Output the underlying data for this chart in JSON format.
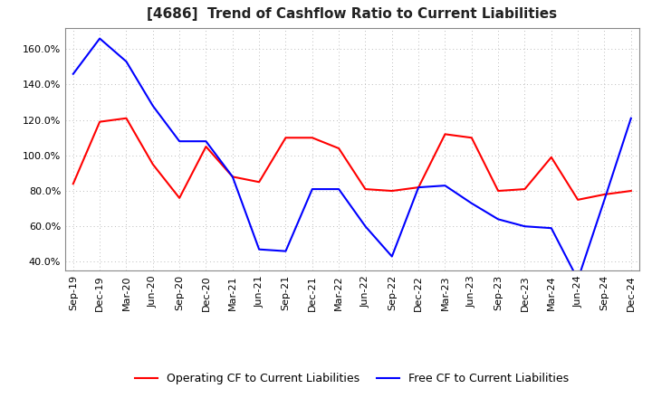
{
  "title": "[4686]  Trend of Cashflow Ratio to Current Liabilities",
  "x_labels": [
    "Sep-19",
    "Dec-19",
    "Mar-20",
    "Jun-20",
    "Sep-20",
    "Dec-20",
    "Mar-21",
    "Jun-21",
    "Sep-21",
    "Dec-21",
    "Mar-22",
    "Jun-22",
    "Sep-22",
    "Dec-22",
    "Mar-23",
    "Jun-23",
    "Sep-23",
    "Dec-23",
    "Mar-24",
    "Jun-24",
    "Sep-24",
    "Dec-24"
  ],
  "operating_cf": [
    0.84,
    1.19,
    1.21,
    0.95,
    0.76,
    1.05,
    0.88,
    0.85,
    1.1,
    1.1,
    1.04,
    0.81,
    0.8,
    0.82,
    1.12,
    1.1,
    0.8,
    0.81,
    0.99,
    0.75,
    0.78,
    0.8
  ],
  "free_cf": [
    1.46,
    1.66,
    1.53,
    1.28,
    1.08,
    1.08,
    0.88,
    0.47,
    0.46,
    0.81,
    0.81,
    0.6,
    0.43,
    0.82,
    0.83,
    0.73,
    0.64,
    0.6,
    0.59,
    0.3,
    0.75,
    1.21
  ],
  "operating_color": "#ff0000",
  "free_color": "#0000ff",
  "ylim": [
    0.35,
    1.72
  ],
  "yticks": [
    0.4,
    0.6,
    0.8,
    1.0,
    1.2,
    1.4,
    1.6
  ],
  "background_color": "#ffffff",
  "plot_bg_color": "#ffffff",
  "grid_color": "#bbbbbb",
  "title_fontsize": 11,
  "tick_fontsize": 8,
  "legend_labels": [
    "Operating CF to Current Liabilities",
    "Free CF to Current Liabilities"
  ]
}
